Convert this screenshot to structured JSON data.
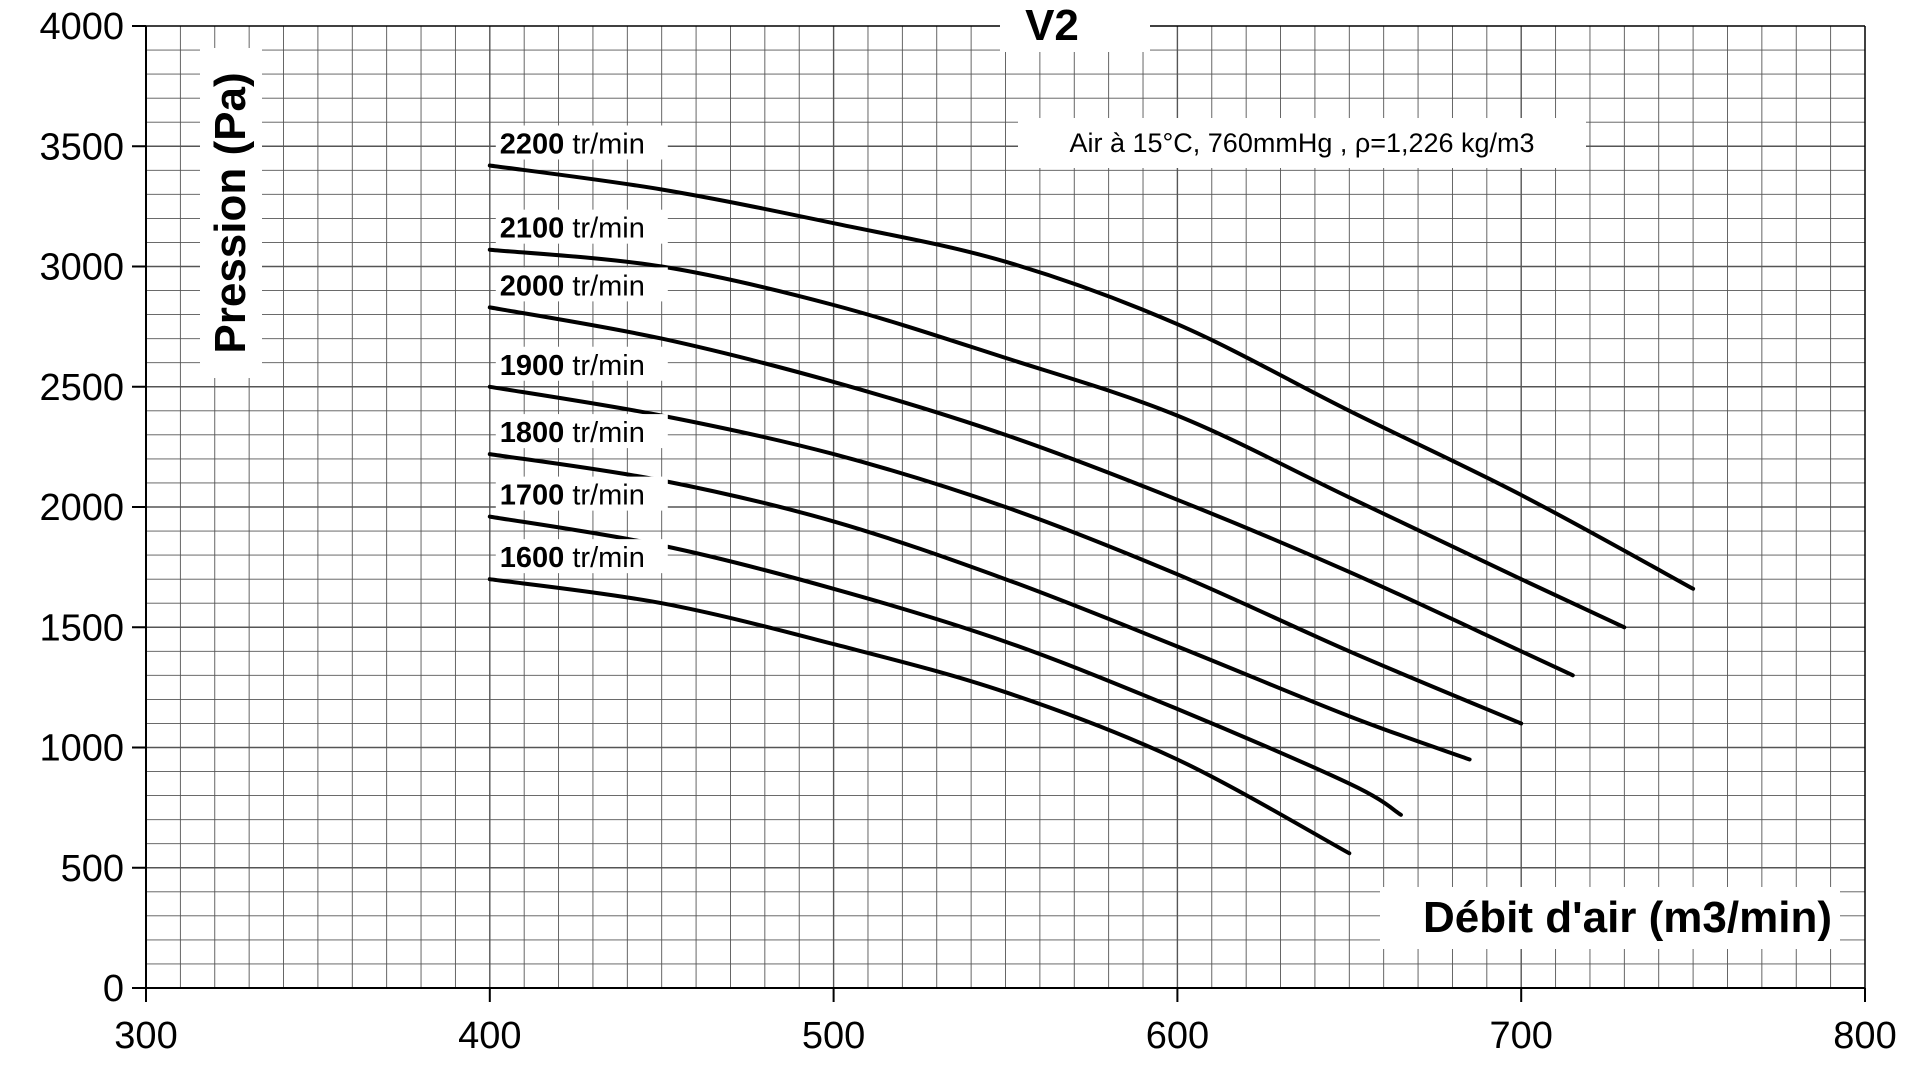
{
  "chart_data": {
    "type": "line",
    "title": "V2",
    "xlabel": "Débit d'air (m3/min)",
    "ylabel": "Pression (Pa)",
    "annotation": "Air à 15°C, 760mmHg , ρ=1,226 kg/m3",
    "xlim": [
      300,
      800
    ],
    "ylim": [
      0,
      4000
    ],
    "x_ticks": [
      300,
      400,
      500,
      600,
      700,
      800
    ],
    "y_ticks": [
      0,
      500,
      1000,
      1500,
      2000,
      2500,
      3000,
      3500,
      4000
    ],
    "grid": true,
    "label_unit": "tr/min",
    "series": [
      {
        "name": "2200",
        "x": [
          400,
          450,
          500,
          550,
          600,
          650,
          700,
          750
        ],
        "y": [
          3420,
          3320,
          3180,
          3020,
          2760,
          2400,
          2050,
          1660
        ]
      },
      {
        "name": "2100",
        "x": [
          400,
          450,
          500,
          550,
          600,
          650,
          700,
          730
        ],
        "y": [
          3070,
          3000,
          2840,
          2620,
          2380,
          2040,
          1700,
          1500
        ]
      },
      {
        "name": "2000",
        "x": [
          400,
          450,
          500,
          550,
          600,
          650,
          700,
          715
        ],
        "y": [
          2830,
          2700,
          2520,
          2300,
          2030,
          1730,
          1400,
          1300
        ]
      },
      {
        "name": "1900",
        "x": [
          400,
          450,
          500,
          550,
          600,
          650,
          700
        ],
        "y": [
          2500,
          2380,
          2220,
          2000,
          1720,
          1400,
          1100
        ]
      },
      {
        "name": "1800",
        "x": [
          400,
          450,
          500,
          550,
          600,
          650,
          685
        ],
        "y": [
          2220,
          2110,
          1940,
          1700,
          1420,
          1130,
          950
        ]
      },
      {
        "name": "1700",
        "x": [
          400,
          450,
          500,
          550,
          600,
          650,
          665
        ],
        "y": [
          1960,
          1840,
          1660,
          1440,
          1160,
          850,
          720
        ]
      },
      {
        "name": "1600",
        "x": [
          400,
          450,
          500,
          550,
          600,
          650
        ],
        "y": [
          1700,
          1600,
          1430,
          1230,
          950,
          560
        ]
      }
    ]
  }
}
